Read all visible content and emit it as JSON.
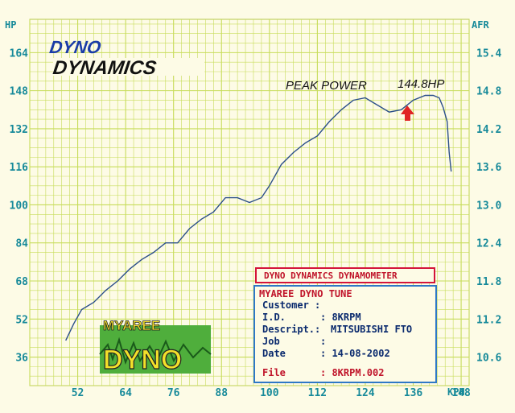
{
  "chart_data": {
    "type": "line",
    "ylabel_left": "HP",
    "ylabel_right": "AFR",
    "xlabel": "KPH",
    "x_ticks": [
      52,
      64,
      76,
      88,
      100,
      112,
      124,
      136,
      148
    ],
    "y_left_ticks": [
      36,
      52,
      68,
      84,
      100,
      116,
      132,
      148,
      164
    ],
    "y_right_ticks": [
      "10.6",
      "11.2",
      "11.8",
      "12.4",
      "13.0",
      "13.6",
      "14.2",
      "14.8",
      "15.4"
    ],
    "xlim": [
      40,
      150
    ],
    "ylim": [
      24,
      178
    ],
    "grid": true,
    "series": [
      {
        "color": "#2b4f8a",
        "x": [
          49,
          51,
          53,
          56,
          59,
          62,
          65,
          68,
          71,
          74,
          77,
          80,
          83,
          86,
          89,
          92,
          95,
          98,
          100,
          103,
          106,
          109,
          112,
          115,
          118,
          121,
          124,
          127,
          130,
          133,
          136,
          139,
          141,
          142.5,
          143.5,
          144.5,
          145,
          145.5
        ],
        "y": [
          43,
          50,
          56,
          59,
          64,
          68,
          73,
          77,
          80,
          84,
          84,
          90,
          94,
          97,
          103,
          103,
          101,
          103,
          108,
          117,
          122,
          126,
          129,
          135,
          140,
          144,
          145,
          142,
          139,
          140,
          144,
          146,
          146,
          145,
          141,
          135,
          122,
          114
        ]
      }
    ],
    "annotations": {
      "peak_label": "PEAK POWER",
      "peak_value": "144.8HP"
    }
  },
  "logo": {
    "line1": "DYNO",
    "line2": "DYNAMICS"
  },
  "stamp": {
    "line1": "MYAREE",
    "line2": "DYNO"
  },
  "info_box": {
    "title": "DYNO DYNAMICS DYNAMOMETER",
    "header": "MYAREE DYNO TUNE",
    "customer_label": "Customer :",
    "id_label": "I.D.",
    "id_value": ": 8KRPM",
    "descript_label": "Descript.:",
    "descript_value": "MITSUBISHI FTO",
    "job_label": "Job",
    "job_value": ":",
    "date_label": "Date",
    "date_value": ": 14-08-2002",
    "file_label": "File",
    "file_value": ": 8KRPM.002"
  },
  "colors": {
    "grid": "#c7dc5a",
    "axis_text": "#178a9a",
    "curve": "#2b4f8a",
    "peak_arrow": "#e02424",
    "box_border_red": "#d4143a",
    "box_border_blue": "#2e78c6"
  }
}
